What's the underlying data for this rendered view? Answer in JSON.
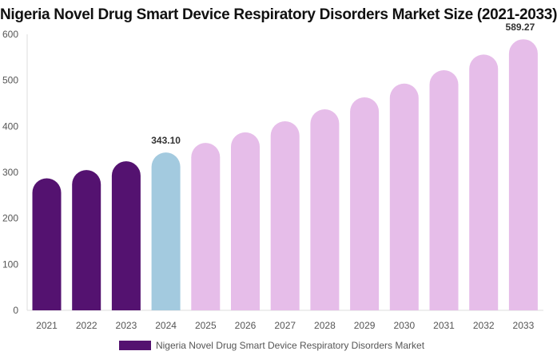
{
  "chart_data": {
    "type": "bar",
    "title": "Nigeria Novel Drug Smart Device Respiratory Disorders Market Size (2021-2033)",
    "categories": [
      "2021",
      "2022",
      "2023",
      "2024",
      "2025",
      "2026",
      "2027",
      "2028",
      "2029",
      "2030",
      "2031",
      "2032",
      "2033"
    ],
    "series": [
      {
        "name": "Nigeria Novel Drug Smart Device Respiratory Disorders Market",
        "values": [
          287,
          305,
          324,
          343.1,
          364,
          387,
          411,
          437,
          463,
          493,
          522,
          556,
          589.27
        ]
      }
    ],
    "data_labels": {
      "3": "343.10",
      "12": "589.27"
    },
    "bar_colors": {
      "historical": "#541270",
      "current": "#a3cadf",
      "forecast": "#e6bde9"
    },
    "ylim": [
      0,
      600
    ],
    "yticks": [
      0,
      100,
      200,
      300,
      400,
      500,
      600
    ],
    "legend_position": "bottom",
    "grid": false
  }
}
